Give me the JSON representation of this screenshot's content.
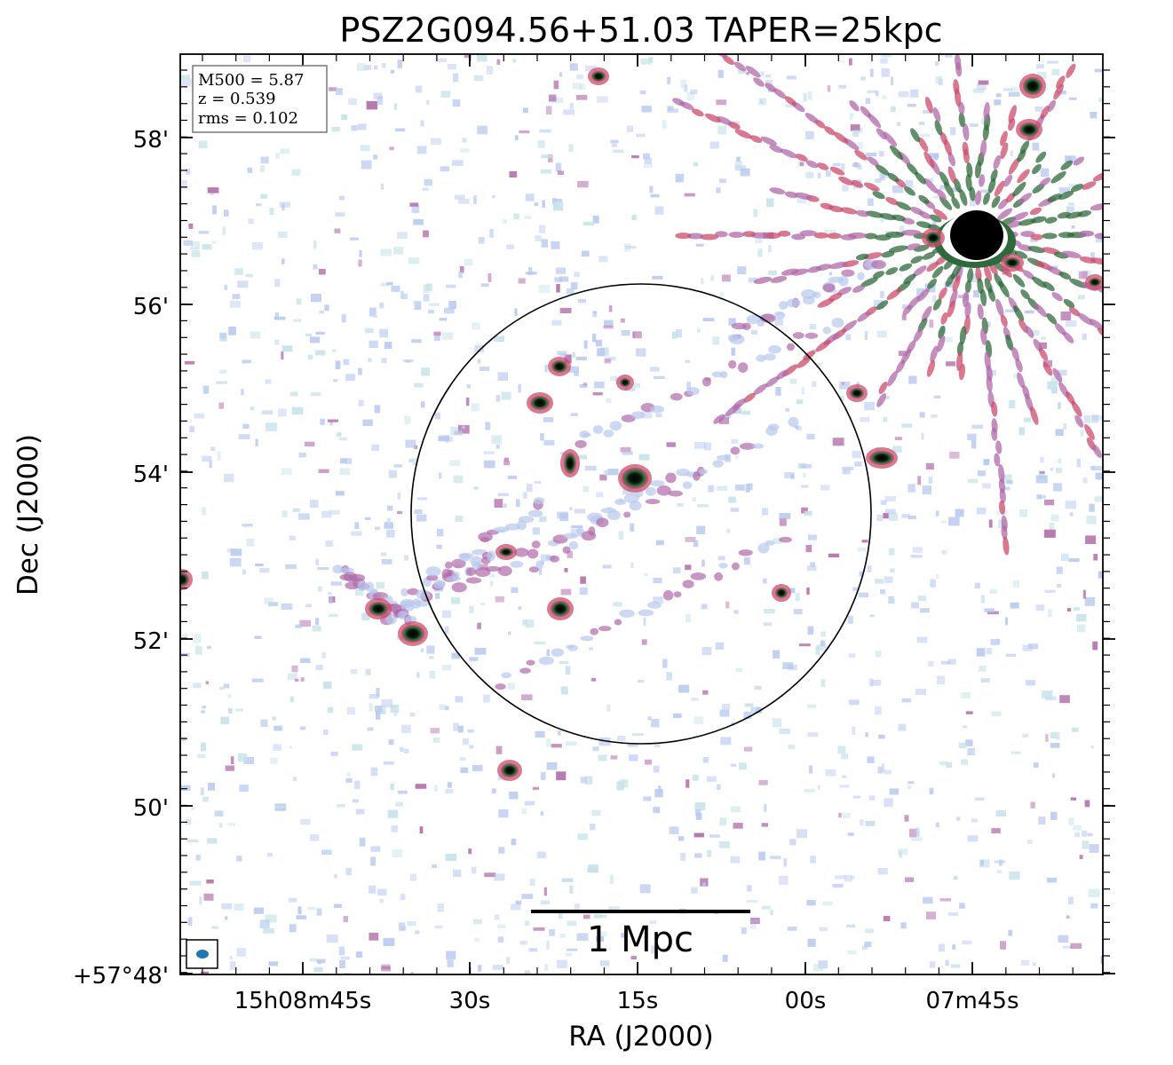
{
  "title": "PSZ2G094.56+51.03 TAPER=25kpc",
  "xlabel": "RA (J2000)",
  "ylabel": "Dec (J2000)",
  "info_box": {
    "lines": [
      "M500 = 5.87",
      "z = 0.539",
      "rms = 0.102"
    ]
  },
  "scale_bar": {
    "label": "1 Mpc"
  },
  "x_ticks": [
    "15h08m45s",
    "30s",
    "15s",
    "00s",
    "07m45s"
  ],
  "y_ticks": [
    "58'",
    "56'",
    "54'",
    "52'",
    "50'",
    "+57°48'"
  ],
  "colors": {
    "faint_emission": "#b8c8ee",
    "faint_emission_2": "#c6e2e8",
    "mid_emission": "#b06aa8",
    "strong_emission": "#cc4c6c",
    "peak_emission": "#2f6a3c",
    "core": "#000000",
    "beam": "#1f77b4"
  }
}
